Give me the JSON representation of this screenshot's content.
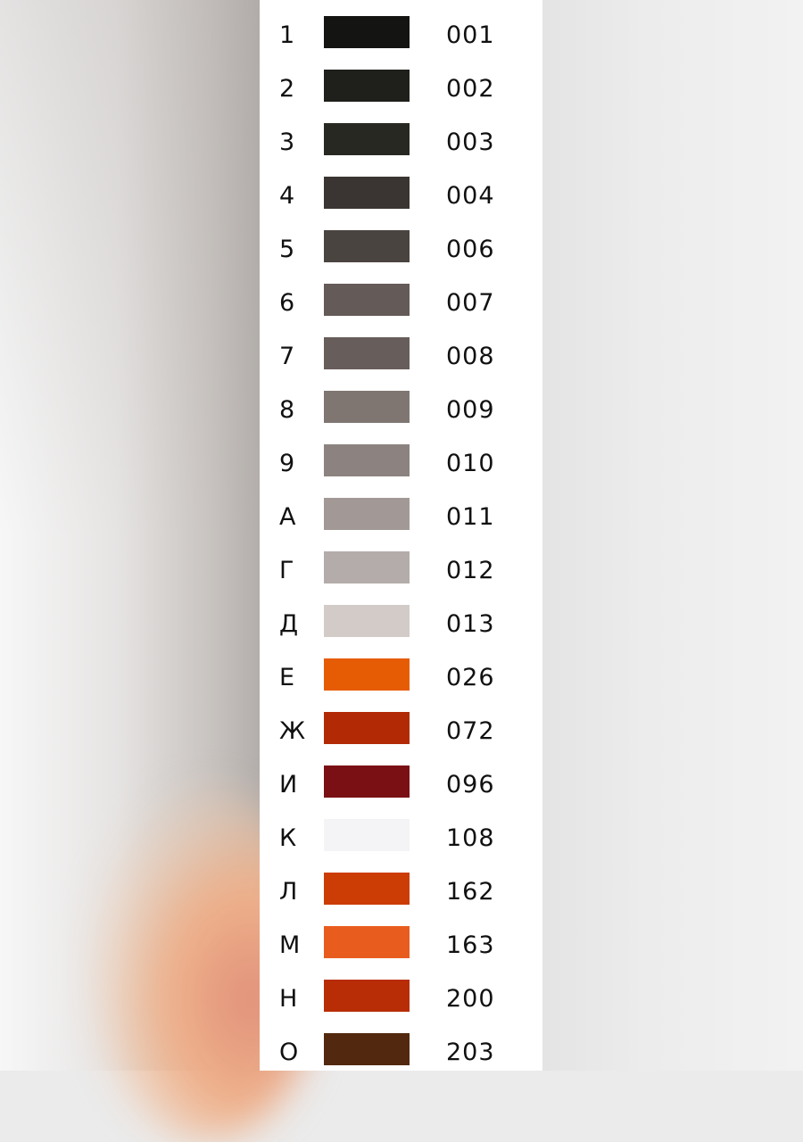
{
  "colors": [
    {
      "symbol": "1",
      "color": "#141412",
      "code": "001"
    },
    {
      "symbol": "2",
      "color": "#1f1f1b",
      "code": "002"
    },
    {
      "symbol": "3",
      "color": "#282823",
      "code": "003"
    },
    {
      "symbol": "4",
      "color": "#3a3532",
      "code": "004"
    },
    {
      "symbol": "5",
      "color": "#4a4441",
      "code": "006"
    },
    {
      "symbol": "6",
      "color": "#645a57",
      "code": "007"
    },
    {
      "symbol": "7",
      "color": "#675d5a",
      "code": "008"
    },
    {
      "symbol": "8",
      "color": "#7f7672",
      "code": "009"
    },
    {
      "symbol": "9",
      "color": "#8c8380",
      "code": "010"
    },
    {
      "symbol": "А",
      "color": "#a29996",
      "code": "011"
    },
    {
      "symbol": "Г",
      "color": "#b4acaa",
      "code": "012"
    },
    {
      "symbol": "Д",
      "color": "#d2cbc8",
      "code": "013"
    },
    {
      "symbol": "Е",
      "color": "#e65c05",
      "code": "026"
    },
    {
      "symbol": "Ж",
      "color": "#b22a05",
      "code": "072"
    },
    {
      "symbol": "И",
      "color": "#7a1014",
      "code": "096"
    },
    {
      "symbol": "К",
      "color": "#f4f4f6",
      "code": "108"
    },
    {
      "symbol": "Л",
      "color": "#cc3c05",
      "code": "162"
    },
    {
      "symbol": "М",
      "color": "#e85c1e",
      "code": "163"
    },
    {
      "symbol": "Н",
      "color": "#b82d05",
      "code": "200"
    },
    {
      "symbol": "О",
      "color": "#52290f",
      "code": "203"
    }
  ]
}
